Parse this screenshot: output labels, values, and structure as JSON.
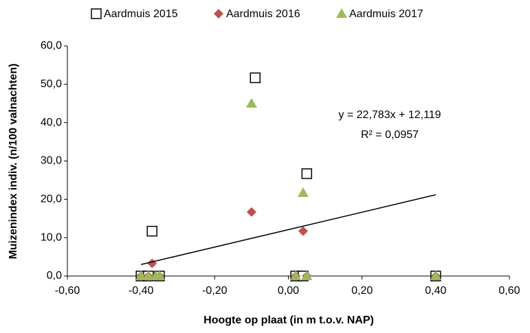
{
  "chart_data": {
    "type": "scatter",
    "xlabel": "Hoogte op plaat (in m t.o.v. NAP)",
    "ylabel": "Muizenindex indiv. (n/100 valnachten)",
    "xlim": [
      -0.6,
      0.6
    ],
    "ylim": [
      0,
      60
    ],
    "xticks": [
      {
        "value": -0.6,
        "label": "-0,60"
      },
      {
        "value": -0.4,
        "label": "-0,40"
      },
      {
        "value": -0.2,
        "label": "-0,20"
      },
      {
        "value": 0,
        "label": "0,00"
      },
      {
        "value": 0.2,
        "label": "0,20"
      },
      {
        "value": 0.4,
        "label": "0,40"
      },
      {
        "value": 0.6,
        "label": "0,60"
      }
    ],
    "yticks": [
      {
        "value": 0,
        "label": "0,0"
      },
      {
        "value": 10,
        "label": "10,0"
      },
      {
        "value": 20,
        "label": "20,0"
      },
      {
        "value": 30,
        "label": "30,0"
      },
      {
        "value": 40,
        "label": "40,0"
      },
      {
        "value": 50,
        "label": "50,0"
      },
      {
        "value": 60,
        "label": "60,0"
      }
    ],
    "legend": "top",
    "series": [
      {
        "name": "Aardmuis 2015",
        "color": "#000000",
        "marker": "square",
        "x": [
          -0.4,
          -0.38,
          -0.37,
          -0.35,
          -0.09,
          0.02,
          0.05,
          0.04,
          0.4
        ],
        "y": [
          0,
          0,
          11.7,
          0,
          51.7,
          0,
          26.7,
          0,
          0
        ]
      },
      {
        "name": "Aardmuis 2016",
        "color": "#c0504d",
        "marker": "diamond",
        "x": [
          -0.4,
          -0.38,
          -0.37,
          -0.35,
          -0.1,
          0.02,
          0.04,
          0.05,
          0.4
        ],
        "y": [
          0,
          0,
          3.3,
          0,
          16.7,
          0,
          11.7,
          0,
          0
        ]
      },
      {
        "name": "Aardmuis 2017",
        "color": "#9bbb59",
        "marker": "triangle",
        "x": [
          -0.4,
          -0.38,
          -0.36,
          -0.35,
          -0.1,
          0.02,
          0.04,
          0.05,
          0.4
        ],
        "y": [
          0,
          0,
          0,
          0,
          45.0,
          0,
          21.7,
          0,
          0
        ]
      }
    ],
    "trendline": {
      "x": [
        -0.4,
        0.4
      ],
      "y": [
        3.0,
        21.2
      ]
    },
    "annotations": [
      "y = 22,783x + 12,119",
      "R² = 0,0957"
    ]
  }
}
